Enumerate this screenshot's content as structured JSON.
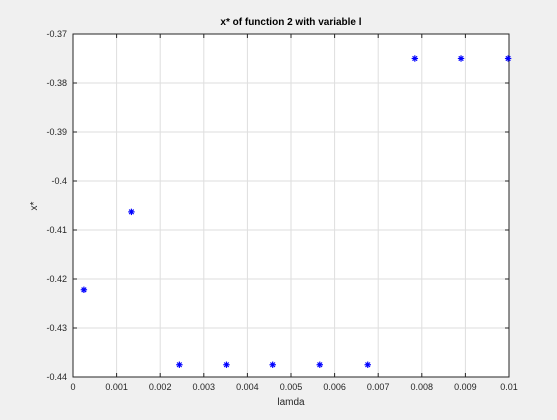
{
  "chart_data": {
    "type": "scatter",
    "title": "x* of function 2 with variable l",
    "xlabel": "lamda",
    "ylabel": "x*",
    "xlim": [
      0,
      0.01
    ],
    "ylim": [
      -0.44,
      -0.37
    ],
    "x_ticks": [
      0,
      0.001,
      0.002,
      0.003,
      0.004,
      0.005,
      0.006,
      0.007,
      0.008,
      0.009,
      0.01
    ],
    "x_tick_labels": [
      "0",
      "0.001",
      "0.002",
      "0.003",
      "0.004",
      "0.005",
      "0.006",
      "0.007",
      "0.008",
      "0.009",
      "0.01"
    ],
    "y_ticks": [
      -0.37,
      -0.38,
      -0.39,
      -0.4,
      -0.41,
      -0.42,
      -0.43,
      -0.44
    ],
    "y_tick_labels": [
      "-0.37",
      "-0.38",
      "-0.39",
      "-0.4",
      "-0.41",
      "-0.42",
      "-0.43",
      "-0.44"
    ],
    "grid": true,
    "marker": "*",
    "marker_color": "#0000ff",
    "series": [
      {
        "x": [
          0.00025,
          0.00134,
          0.00244,
          0.00352,
          0.00458,
          0.00566,
          0.00676,
          0.00784,
          0.0089,
          0.00998
        ],
        "y": [
          -0.4222,
          -0.4063,
          -0.4375,
          -0.4375,
          -0.4375,
          -0.4375,
          -0.4375,
          -0.375,
          -0.375,
          -0.375
        ]
      }
    ]
  }
}
